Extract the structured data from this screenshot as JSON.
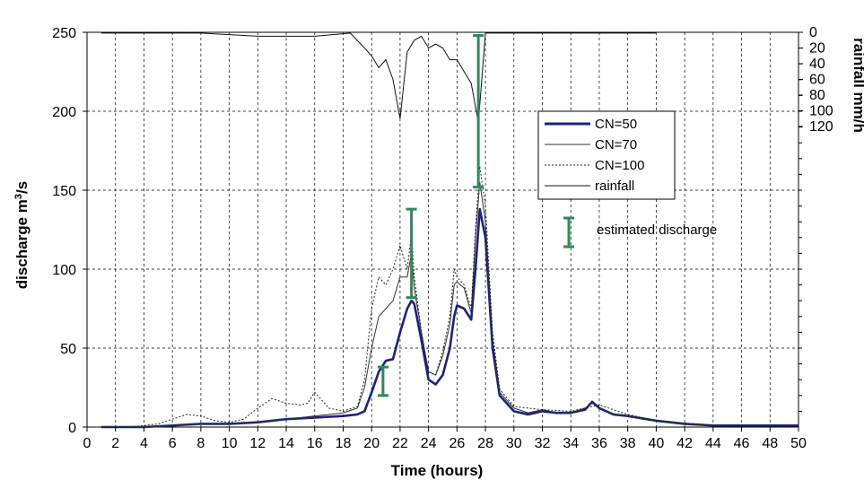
{
  "chart_data": {
    "type": "line",
    "xlabel": "Time (hours)",
    "ylabel_prefix": "discharge m",
    "ylabel_sup": "3",
    "ylabel_suffix": "/s",
    "y2label": "rainfall mm/h",
    "xlim": [
      0,
      50
    ],
    "ylim": [
      0,
      250
    ],
    "y2lim_inverted": [
      0,
      120
    ],
    "xticks": [
      "0",
      "2",
      "4",
      "6",
      "8",
      "10",
      "12",
      "14",
      "16",
      "18",
      "20",
      "22",
      "24",
      "26",
      "28",
      "30",
      "32",
      "34",
      "36",
      "38",
      "40",
      "42",
      "44",
      "46",
      "48",
      "50"
    ],
    "yticks": [
      "0",
      "50",
      "100",
      "150",
      "200",
      "250"
    ],
    "y2ticks": [
      "0",
      "20",
      "40",
      "60",
      "80",
      "100",
      "120"
    ],
    "grid": "dashed",
    "legend_placement": "right-center",
    "series": [
      {
        "name": "CN=50",
        "color": "#1a237e",
        "style": "solid-thick",
        "x": [
          1,
          4,
          6,
          8,
          10,
          12,
          14,
          16,
          18,
          19,
          19.5,
          20,
          20.5,
          21,
          21.5,
          22,
          22.5,
          22.8,
          23,
          23.5,
          24,
          24.5,
          25,
          25.5,
          25.8,
          26,
          26.5,
          27,
          27.3,
          27.6,
          28,
          28.5,
          29,
          30,
          31,
          32,
          33,
          34,
          35,
          35.5,
          36,
          37,
          38,
          40,
          42,
          44,
          46,
          50
        ],
        "y": [
          0,
          0,
          1,
          2,
          2,
          3,
          5,
          6,
          7,
          8,
          10,
          22,
          35,
          42,
          43,
          60,
          75,
          80,
          78,
          55,
          30,
          27,
          33,
          50,
          70,
          77,
          75,
          68,
          100,
          138,
          120,
          50,
          20,
          10,
          8,
          10,
          9,
          9,
          11,
          16,
          12,
          8,
          7,
          4,
          2,
          1,
          1,
          1
        ]
      },
      {
        "name": "CN=70",
        "color": "#333333",
        "style": "solid-thin",
        "x": [
          1,
          4,
          6,
          8,
          10,
          12,
          14,
          16,
          18,
          19,
          19.5,
          20,
          20.5,
          21,
          21.5,
          22,
          22.5,
          22.8,
          23,
          23.5,
          24,
          24.5,
          25,
          25.5,
          25.8,
          26,
          26.5,
          27,
          27.3,
          27.6,
          28,
          28.5,
          29,
          30,
          31,
          32,
          33,
          34,
          35,
          35.5,
          36,
          37,
          38,
          40,
          42,
          44,
          46,
          50
        ],
        "y": [
          0,
          0,
          1,
          2,
          2,
          3,
          5,
          7,
          9,
          12,
          25,
          50,
          70,
          75,
          80,
          95,
          95,
          110,
          88,
          60,
          35,
          33,
          45,
          65,
          90,
          92,
          88,
          72,
          120,
          155,
          130,
          55,
          22,
          12,
          9,
          11,
          9,
          9,
          12,
          15,
          12,
          8,
          7,
          4,
          2,
          1,
          1,
          1
        ]
      },
      {
        "name": "CN=100",
        "color": "#222222",
        "style": "dotted",
        "x": [
          1,
          3,
          5,
          6,
          7,
          8,
          9,
          10,
          11,
          12,
          13,
          14,
          15,
          15.5,
          16,
          17,
          18,
          19,
          19.5,
          20,
          20.5,
          21,
          21.5,
          22,
          22.5,
          22.8,
          23,
          23.5,
          24,
          24.5,
          25,
          25.5,
          25.8,
          26,
          26.5,
          27,
          27.3,
          27.6,
          28,
          28.5,
          29,
          30,
          32,
          34,
          36,
          38,
          40,
          44,
          50
        ],
        "y": [
          0,
          0,
          2,
          5,
          8,
          7,
          4,
          3,
          5,
          12,
          18,
          15,
          14,
          15,
          22,
          12,
          10,
          13,
          30,
          75,
          95,
          90,
          100,
          115,
          100,
          122,
          95,
          60,
          35,
          33,
          48,
          70,
          100,
          95,
          90,
          75,
          125,
          165,
          140,
          60,
          24,
          13,
          11,
          10,
          14,
          8,
          4,
          1,
          1
        ]
      }
    ],
    "rainfall": {
      "name": "rainfall",
      "color": "#111111",
      "x": [
        1,
        8,
        12,
        16,
        18.5,
        19.5,
        20,
        20.5,
        21,
        21.5,
        22,
        22.5,
        23,
        23.5,
        24,
        24.5,
        25,
        25.5,
        26,
        26.5,
        27,
        27.5,
        28,
        30,
        40
      ],
      "y": [
        1,
        1,
        5,
        5,
        1,
        20,
        30,
        45,
        35,
        60,
        110,
        25,
        10,
        5,
        20,
        15,
        20,
        35,
        35,
        50,
        65,
        115,
        1,
        1,
        1
      ]
    },
    "estimated_discharge": {
      "name": "estimated discharge",
      "color": "#2e8b57",
      "bars": [
        {
          "x": 20.8,
          "low": 20,
          "high": 38
        },
        {
          "x": 22.8,
          "low": 82,
          "high": 138
        },
        {
          "x": 27.5,
          "low": 152,
          "high": 248
        }
      ]
    }
  }
}
